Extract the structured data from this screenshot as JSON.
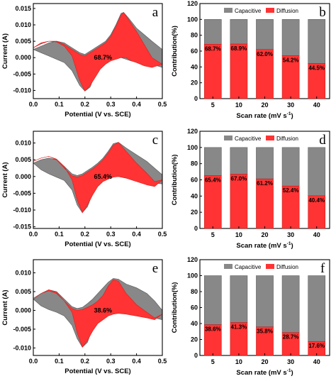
{
  "colors": {
    "capacitive": "#888888",
    "diffusion": "#ff3333",
    "axis": "#000000"
  },
  "chart_data": [
    {
      "type": "area",
      "panel_label": "a",
      "xlabel": "Potential (V vs. SCE)",
      "ylabel": "Current (A)",
      "xlim": [
        0.0,
        0.5
      ],
      "ylim": [
        -0.0125,
        0.0165
      ],
      "xticks": [
        "0.0",
        "0.1",
        "0.2",
        "0.3",
        "0.4",
        "0.5"
      ],
      "yticks": [
        "0.015",
        "0.010",
        "0.005",
        "0.000",
        "-0.005",
        "-0.010"
      ],
      "annotation": "68.7%",
      "series": [
        {
          "x": [
            0.0,
            0.03,
            0.06,
            0.09,
            0.12,
            0.15,
            0.18,
            0.2,
            0.22,
            0.24,
            0.26,
            0.28,
            0.3,
            0.32,
            0.34,
            0.35,
            0.37,
            0.4,
            0.43,
            0.46,
            0.5
          ],
          "y": [
            0.0025,
            0.0035,
            0.0045,
            0.005,
            0.0045,
            0.003,
            0.0015,
            0.001,
            0.002,
            0.003,
            0.004,
            0.005,
            0.007,
            0.01,
            0.0135,
            0.0138,
            0.012,
            0.009,
            0.007,
            0.005,
            0.0025
          ]
        },
        {
          "x": [
            0.0,
            0.03,
            0.06,
            0.09,
            0.12,
            0.15,
            0.18,
            0.2,
            0.22,
            0.24,
            0.26,
            0.28,
            0.3,
            0.32,
            0.34,
            0.36,
            0.38,
            0.4,
            0.43,
            0.46,
            0.5
          ],
          "y": [
            0.0025,
            0.0015,
            0.0005,
            -0.0005,
            -0.0015,
            -0.004,
            -0.0085,
            -0.0102,
            -0.009,
            -0.005,
            -0.002,
            -0.001,
            -0.0005,
            0.0,
            0.0,
            -0.0005,
            -0.001,
            -0.001,
            -0.0015,
            -0.002,
            -0.003
          ]
        },
        {
          "x": [
            0.0,
            0.03,
            0.06,
            0.09,
            0.12,
            0.15,
            0.18,
            0.2,
            0.22,
            0.24,
            0.26,
            0.28,
            0.3,
            0.32,
            0.34,
            0.35,
            0.37,
            0.4,
            0.43,
            0.46,
            0.5
          ],
          "y": [
            0.003,
            0.0042,
            0.005,
            0.005,
            0.004,
            0.0025,
            0.001,
            0.0005,
            0.0015,
            0.0025,
            0.0035,
            0.0045,
            0.0065,
            0.0095,
            0.013,
            0.0138,
            0.0115,
            0.008,
            0.004,
            0.0,
            -0.002
          ]
        },
        {
          "x": [
            0.0,
            0.03,
            0.06,
            0.09,
            0.12,
            0.15,
            0.18,
            0.2,
            0.22,
            0.24,
            0.26,
            0.28,
            0.3,
            0.32,
            0.34,
            0.36,
            0.38,
            0.4,
            0.43,
            0.46,
            0.5
          ],
          "y": [
            0.003,
            0.0045,
            0.005,
            0.0048,
            0.0035,
            0.0005,
            -0.007,
            -0.0102,
            -0.0085,
            -0.006,
            -0.0035,
            -0.002,
            -0.001,
            -0.0005,
            0.0,
            0.0,
            -0.001,
            -0.0015,
            -0.0025,
            -0.003,
            -0.002
          ]
        }
      ]
    },
    {
      "type": "bar",
      "panel_label": "b",
      "xlabel": "Scan rate (mV s",
      "xlabel_sup": "-1",
      "xlabel_end": ")",
      "ylabel": "Contribution(%)",
      "ylim": [
        0,
        120
      ],
      "yticks": [
        "0",
        "20",
        "40",
        "60",
        "80",
        "100",
        "120"
      ],
      "categories": [
        "5",
        "10",
        "20",
        "30",
        "40"
      ],
      "legend": [
        "Capacitive",
        "Diffusion"
      ],
      "legend_position": "top",
      "series": [
        {
          "name": "Diffusion",
          "values": [
            68.7,
            68.9,
            62.0,
            54.2,
            44.5
          ]
        },
        {
          "name": "Capacitive",
          "values": [
            31.3,
            31.1,
            38.0,
            45.8,
            55.5
          ]
        }
      ],
      "labels": [
        "68.7%",
        "68.9%",
        "62.0%",
        "54.2%",
        "44.5%"
      ]
    },
    {
      "type": "area",
      "panel_label": "c",
      "xlabel": "Potential (V vs. SCE)",
      "ylabel": "Current (A)",
      "xlim": [
        0.0,
        0.5
      ],
      "ylim": [
        -0.0155,
        0.0135
      ],
      "xticks": [
        "0.0",
        "0.1",
        "0.2",
        "0.3",
        "0.4",
        "0.5"
      ],
      "yticks": [
        "0.010",
        "0.005",
        "0.000",
        "-0.005",
        "-0.010",
        "-0.015"
      ],
      "annotation": "65.4%",
      "series": [
        {
          "x": [
            0.0,
            0.03,
            0.06,
            0.09,
            0.12,
            0.15,
            0.17,
            0.19,
            0.21,
            0.23,
            0.25,
            0.27,
            0.29,
            0.31,
            0.33,
            0.36,
            0.4,
            0.44,
            0.47,
            0.5
          ],
          "y": [
            0.004,
            0.005,
            0.0055,
            0.005,
            0.003,
            0.0008,
            0.0003,
            0.0008,
            0.0018,
            0.0028,
            0.004,
            0.0055,
            0.0075,
            0.0098,
            0.0102,
            0.0085,
            0.0065,
            0.0045,
            0.0025,
            0.0005
          ]
        },
        {
          "x": [
            0.0,
            0.03,
            0.06,
            0.09,
            0.12,
            0.15,
            0.17,
            0.19,
            0.21,
            0.23,
            0.25,
            0.27,
            0.29,
            0.31,
            0.33,
            0.36,
            0.4,
            0.44,
            0.47,
            0.5
          ],
          "y": [
            0.004,
            0.002,
            0.0008,
            -0.0002,
            -0.0012,
            -0.004,
            -0.0085,
            -0.0108,
            -0.009,
            -0.005,
            -0.002,
            -0.0008,
            -0.0002,
            0.0,
            0.0,
            -0.0005,
            -0.001,
            -0.0015,
            -0.002,
            -0.0022
          ]
        },
        {
          "x": [
            0.0,
            0.03,
            0.06,
            0.09,
            0.12,
            0.15,
            0.17,
            0.19,
            0.21,
            0.23,
            0.25,
            0.27,
            0.29,
            0.31,
            0.33,
            0.36,
            0.4,
            0.44,
            0.47,
            0.5
          ],
          "y": [
            0.0045,
            0.0055,
            0.006,
            0.005,
            0.0025,
            0.0002,
            -0.0002,
            0.0003,
            0.0013,
            0.0023,
            0.0035,
            0.005,
            0.007,
            0.0093,
            0.0102,
            0.0075,
            0.004,
            0.001,
            -0.0015,
            -0.001
          ]
        },
        {
          "x": [
            0.0,
            0.03,
            0.06,
            0.09,
            0.12,
            0.15,
            0.17,
            0.19,
            0.21,
            0.23,
            0.25,
            0.27,
            0.29,
            0.31,
            0.33,
            0.36,
            0.4,
            0.44,
            0.47,
            0.5
          ],
          "y": [
            0.0045,
            0.0055,
            0.006,
            0.0052,
            0.003,
            -0.001,
            -0.007,
            -0.0108,
            -0.0085,
            -0.0055,
            -0.003,
            -0.0015,
            -0.0008,
            -0.0002,
            0.0,
            -0.0005,
            -0.0015,
            -0.0025,
            -0.003,
            -0.001
          ]
        }
      ]
    },
    {
      "type": "bar",
      "panel_label": "d",
      "xlabel": "Scan rate (mV s",
      "xlabel_sup": "-1",
      "xlabel_end": ")",
      "ylabel": "Contribution(%)",
      "ylim": [
        0,
        120
      ],
      "yticks": [
        "0",
        "20",
        "40",
        "60",
        "80",
        "100",
        "120"
      ],
      "categories": [
        "5",
        "10",
        "20",
        "30",
        "40"
      ],
      "legend": [
        "Capacitive",
        "Diffusion"
      ],
      "legend_position": "top",
      "series": [
        {
          "name": "Diffusion",
          "values": [
            65.4,
            67.0,
            61.2,
            52.4,
            40.4
          ]
        },
        {
          "name": "Capacitive",
          "values": [
            34.6,
            33.0,
            38.8,
            47.6,
            59.6
          ]
        }
      ],
      "labels": [
        "65.4%",
        "67.0%",
        "61.2%",
        "52.4%",
        "40.4%"
      ]
    },
    {
      "type": "area",
      "panel_label": "e",
      "xlabel": "Potential (V vs. SCE)",
      "ylabel": "Current (A)",
      "xlim": [
        0.0,
        0.5
      ],
      "ylim": [
        -0.012,
        0.0135
      ],
      "xticks": [
        "0.0",
        "0.1",
        "0.2",
        "0.3",
        "0.4",
        "0.5"
      ],
      "yticks": [
        "0.010",
        "0.005",
        "0.000",
        "-0.005",
        "-0.010"
      ],
      "annotation": "38.6%",
      "series": [
        {
          "x": [
            0.0,
            0.03,
            0.06,
            0.09,
            0.12,
            0.15,
            0.17,
            0.19,
            0.21,
            0.23,
            0.25,
            0.27,
            0.29,
            0.31,
            0.33,
            0.36,
            0.4,
            0.44,
            0.47,
            0.5
          ],
          "y": [
            0.003,
            0.0045,
            0.0055,
            0.005,
            0.003,
            0.001,
            0.0005,
            0.0008,
            0.0018,
            0.003,
            0.0045,
            0.006,
            0.0075,
            0.0085,
            0.0083,
            0.007,
            0.006,
            0.0045,
            0.0025,
            0.0
          ]
        },
        {
          "x": [
            0.0,
            0.03,
            0.06,
            0.09,
            0.12,
            0.15,
            0.17,
            0.19,
            0.21,
            0.23,
            0.25,
            0.27,
            0.29,
            0.31,
            0.33,
            0.36,
            0.4,
            0.44,
            0.47,
            0.5
          ],
          "y": [
            0.003,
            0.0012,
            0.0002,
            -0.0005,
            -0.0015,
            -0.004,
            -0.0075,
            -0.0098,
            -0.0085,
            -0.0045,
            -0.0015,
            -0.0005,
            0.0,
            0.0,
            0.0,
            -0.0005,
            -0.001,
            -0.0015,
            -0.002,
            -0.0025
          ]
        },
        {
          "x": [
            0.0,
            0.03,
            0.06,
            0.09,
            0.12,
            0.15,
            0.17,
            0.19,
            0.21,
            0.23,
            0.25,
            0.27,
            0.29,
            0.31,
            0.33,
            0.36,
            0.4,
            0.44,
            0.47,
            0.5
          ],
          "y": [
            0.0032,
            0.0045,
            0.0055,
            0.0048,
            0.0025,
            0.0005,
            0.0,
            0.0002,
            0.0008,
            0.0015,
            0.0025,
            0.004,
            0.0065,
            0.0082,
            0.0078,
            0.0045,
            0.0015,
            -0.0005,
            -0.002,
            -0.001
          ]
        },
        {
          "x": [
            0.0,
            0.03,
            0.06,
            0.09,
            0.12,
            0.15,
            0.17,
            0.19,
            0.21,
            0.23,
            0.25,
            0.27,
            0.29,
            0.31,
            0.33,
            0.36,
            0.4,
            0.44,
            0.47,
            0.5
          ],
          "y": [
            0.0032,
            0.0045,
            0.0052,
            0.0045,
            0.0025,
            -0.0005,
            -0.006,
            -0.0098,
            -0.008,
            -0.0055,
            -0.0035,
            -0.0025,
            -0.0015,
            -0.001,
            -0.0008,
            -0.001,
            -0.0015,
            -0.002,
            -0.0025,
            -0.001
          ]
        }
      ]
    },
    {
      "type": "bar",
      "panel_label": "f",
      "xlabel": "Scan rate (mV s",
      "xlabel_sup": "-1",
      "xlabel_end": ")",
      "ylabel": "Contribution(%)",
      "ylim": [
        0,
        120
      ],
      "yticks": [
        "0",
        "20",
        "40",
        "60",
        "80",
        "100",
        "120"
      ],
      "categories": [
        "5",
        "10",
        "20",
        "30",
        "40"
      ],
      "legend": [
        "Capacitive",
        "Diffusion"
      ],
      "legend_position": "top",
      "series": [
        {
          "name": "Diffusion",
          "values": [
            38.6,
            41.3,
            35.8,
            28.7,
            17.6
          ]
        },
        {
          "name": "Capacitive",
          "values": [
            61.4,
            58.7,
            64.2,
            71.3,
            82.4
          ]
        }
      ],
      "labels": [
        "38.6%",
        "41.3%",
        "35.8%",
        "28.7%",
        "17.6%"
      ]
    }
  ]
}
